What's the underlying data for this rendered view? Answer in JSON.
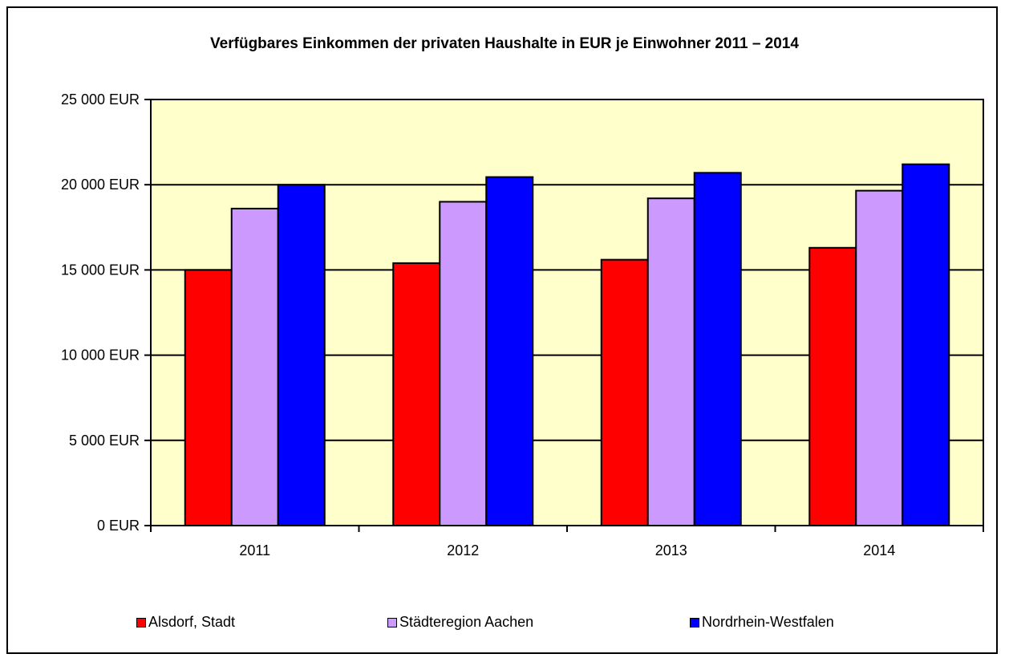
{
  "chart_data": {
    "type": "bar",
    "title": "Verfügbares Einkommen der privaten Haushalte in EUR je Einwohner 2011 – 2014",
    "xlabel": "",
    "ylabel": "",
    "categories": [
      "2011",
      "2012",
      "2013",
      "2014"
    ],
    "series": [
      {
        "name": "Alsdorf, Stadt",
        "color": "#ff0000",
        "values": [
          15000,
          15400,
          15600,
          16300
        ]
      },
      {
        "name": "Städteregion Aachen",
        "color": "#cc99ff",
        "values": [
          18600,
          19000,
          19200,
          19650
        ]
      },
      {
        "name": "Nordrhein-Westfalen",
        "color": "#0000ff",
        "values": [
          20000,
          20450,
          20700,
          21200
        ]
      }
    ],
    "ylim": [
      0,
      25000
    ],
    "yticks": [
      "0 EUR",
      "5 000 EUR",
      "10 000 EUR",
      "15 000 EUR",
      "20 000 EUR",
      "25 000 EUR"
    ],
    "ytick_values": [
      0,
      5000,
      10000,
      15000,
      20000,
      25000
    ],
    "grid": true,
    "legend_position": "bottom",
    "plot_background": "#ffffcc"
  }
}
